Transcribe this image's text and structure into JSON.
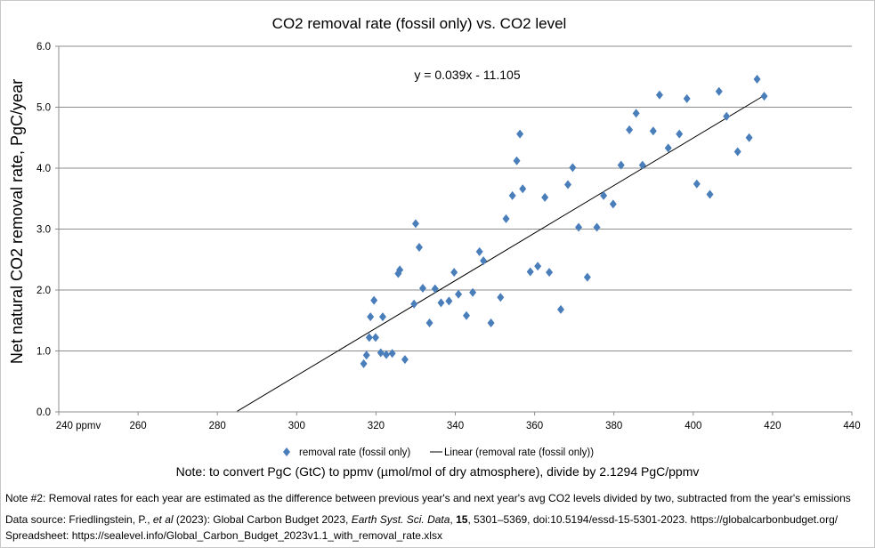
{
  "chart_data": {
    "type": "scatter",
    "title": "CO2 removal rate (fossil only) vs. CO2 level",
    "xlabel": "",
    "ylabel": "Net natural CO2 removal rate, PgC/year",
    "xlim": [
      240,
      440
    ],
    "ylim": [
      0,
      6
    ],
    "x_ticks": [
      "240 ppmv",
      "260",
      "280",
      "300",
      "320",
      "340",
      "360",
      "380",
      "400",
      "420",
      "440"
    ],
    "y_ticks": [
      "0.0",
      "1.0",
      "2.0",
      "3.0",
      "4.0",
      "5.0",
      "6.0"
    ],
    "grid": "horizontal",
    "legend": "bottom",
    "series": [
      {
        "name": "removal rate (fossil only)",
        "color": "#4a7ebb",
        "marker": "diamond",
        "points": [
          [
            316.9,
            0.79
          ],
          [
            317.6,
            0.93
          ],
          [
            318.3,
            1.22
          ],
          [
            318.6,
            1.56
          ],
          [
            319.5,
            1.83
          ],
          [
            319.9,
            1.22
          ],
          [
            321.2,
            0.97
          ],
          [
            321.7,
            1.56
          ],
          [
            322.6,
            0.94
          ],
          [
            324.1,
            0.96
          ],
          [
            325.6,
            2.27
          ],
          [
            326.0,
            2.33
          ],
          [
            327.3,
            0.86
          ],
          [
            329.6,
            1.77
          ],
          [
            330.0,
            3.09
          ],
          [
            330.9,
            2.7
          ],
          [
            331.8,
            2.03
          ],
          [
            333.5,
            1.46
          ],
          [
            334.9,
            2.02
          ],
          [
            336.4,
            1.79
          ],
          [
            338.4,
            1.82
          ],
          [
            339.7,
            2.29
          ],
          [
            340.8,
            1.93
          ],
          [
            342.8,
            1.58
          ],
          [
            344.4,
            1.96
          ],
          [
            346.1,
            2.63
          ],
          [
            347.1,
            2.48
          ],
          [
            349.0,
            1.46
          ],
          [
            351.4,
            1.88
          ],
          [
            352.8,
            3.17
          ],
          [
            354.4,
            3.55
          ],
          [
            355.5,
            4.12
          ],
          [
            356.3,
            4.56
          ],
          [
            357.0,
            3.66
          ],
          [
            358.9,
            2.3
          ],
          [
            360.8,
            2.39
          ],
          [
            362.6,
            3.52
          ],
          [
            363.7,
            2.29
          ],
          [
            366.6,
            1.68
          ],
          [
            368.4,
            3.73
          ],
          [
            369.6,
            4.01
          ],
          [
            371.1,
            3.03
          ],
          [
            373.3,
            2.21
          ],
          [
            375.7,
            3.03
          ],
          [
            377.4,
            3.55
          ],
          [
            379.8,
            3.41
          ],
          [
            381.8,
            4.05
          ],
          [
            383.9,
            4.63
          ],
          [
            385.6,
            4.9
          ],
          [
            387.2,
            4.05
          ],
          [
            389.9,
            4.61
          ],
          [
            391.5,
            5.2
          ],
          [
            393.7,
            4.33
          ],
          [
            396.5,
            4.56
          ],
          [
            398.4,
            5.14
          ],
          [
            400.9,
            3.74
          ],
          [
            404.2,
            3.57
          ],
          [
            406.5,
            5.26
          ],
          [
            408.4,
            4.85
          ],
          [
            411.2,
            4.27
          ],
          [
            414.1,
            4.5
          ],
          [
            416.1,
            5.46
          ],
          [
            417.9,
            5.18
          ]
        ]
      },
      {
        "name": "Linear (removal rate (fossil only))",
        "color": "#000000",
        "type": "trendline",
        "slope": 0.039,
        "intercept": -11.105,
        "x_range": [
          285,
          418
        ]
      }
    ],
    "annotations": [
      "y = 0.039x - 11.105"
    ]
  },
  "notes": {
    "note1": "Note:  to convert PgC (GtC) to ppmv (µmol/mol of dry atmosphere), divide by 2.1294 PgC/ppmv",
    "note2": "Note #2:  Removal rates for each year are estimated as the difference between previous year's and next year's avg CO2 levels divided by two, subtracted from the year's emissions",
    "source_prefix": "Data source:  Friedlingstein, P., ",
    "source_etal": "et al",
    "source_mid1": " (2023): Global Carbon Budget 2023, ",
    "source_journal": "Earth Syst. Sci. Data",
    "source_mid2": ", ",
    "source_vol": "15",
    "source_suffix": ", 5301–5369, doi:10.5194/essd-15-5301-2023.  https://globalcarbonbudget.org/",
    "spreadsheet": "Spreadsheet:  https://sealevel.info/Global_Carbon_Budget_2023v1.1_with_removal_rate.xlsx"
  }
}
